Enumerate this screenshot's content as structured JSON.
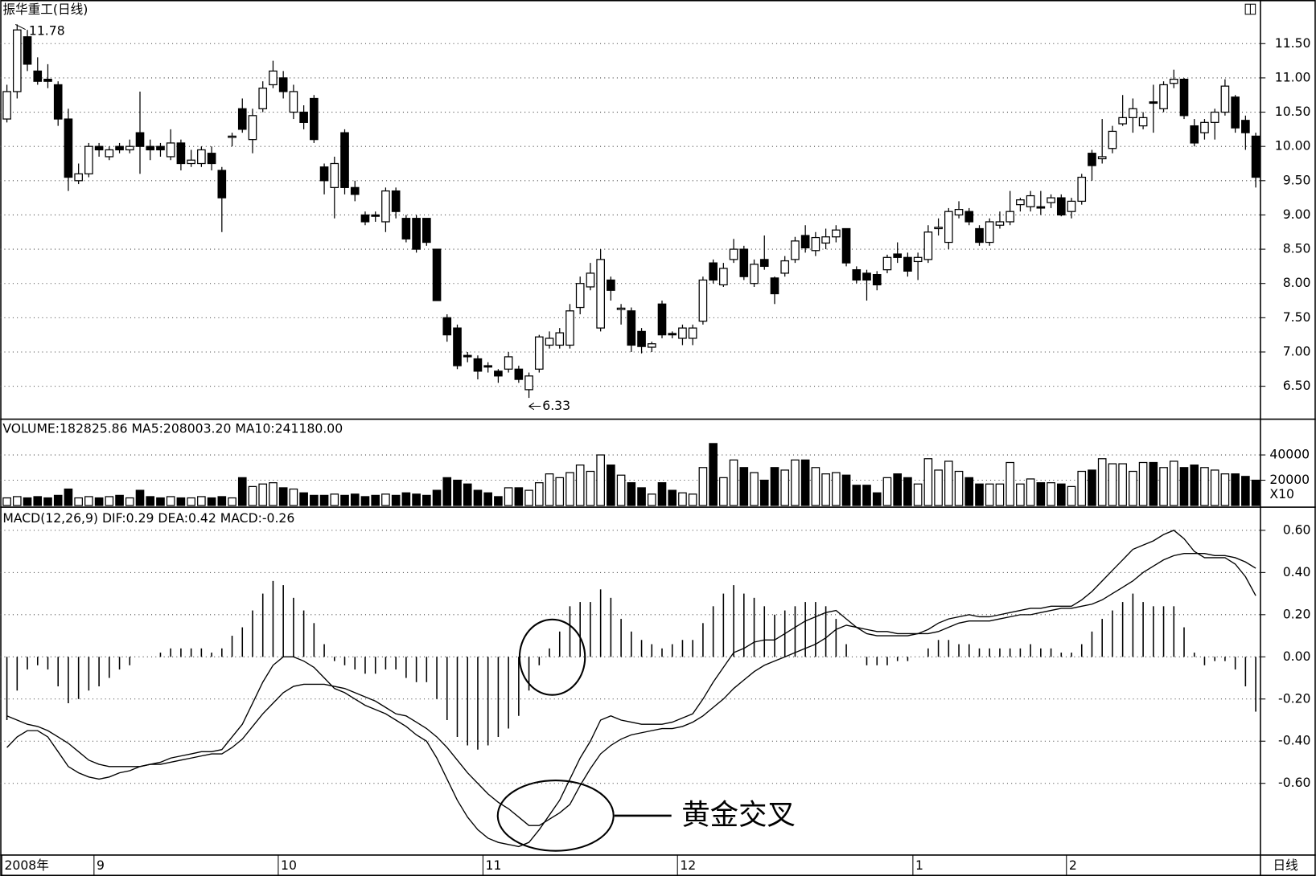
{
  "chart_data": {
    "type": "candlestick",
    "title": "振华重工(日线)",
    "period_label": "日线",
    "high_label": "11.78",
    "low_label": "6.33",
    "annotation": "黄金交叉",
    "categories": [
      "2008年",
      null,
      null,
      null,
      null,
      null,
      null,
      null,
      null,
      "9",
      null,
      null,
      null,
      null,
      null,
      null,
      null,
      null,
      null,
      null,
      null,
      null,
      null,
      null,
      null,
      null,
      null,
      "10",
      null,
      null,
      null,
      null,
      null,
      null,
      null,
      null,
      null,
      null,
      null,
      null,
      null,
      null,
      null,
      null,
      null,
      null,
      null,
      "11",
      null,
      null,
      null,
      null,
      null,
      null,
      null,
      null,
      null,
      null,
      null,
      null,
      null,
      null,
      null,
      null,
      null,
      null,
      "12",
      null,
      null,
      null,
      null,
      null,
      null,
      null,
      null,
      null,
      null,
      null,
      null,
      null,
      null,
      null,
      null,
      null,
      null,
      null,
      null,
      null,
      null,
      "1",
      null,
      null,
      null,
      null,
      null,
      null,
      null,
      null,
      null,
      null,
      null,
      null,
      null,
      null,
      "2",
      null,
      null,
      null,
      null,
      null,
      null,
      null,
      null,
      null,
      null,
      null,
      null,
      null,
      null,
      null,
      null,
      null,
      null
    ],
    "ohlc": [
      [
        10.4,
        10.9,
        10.35,
        10.8
      ],
      [
        10.8,
        11.78,
        10.7,
        11.7
      ],
      [
        11.6,
        11.7,
        11.1,
        11.2
      ],
      [
        11.1,
        11.3,
        10.9,
        10.95
      ],
      [
        10.98,
        11.2,
        10.85,
        10.95
      ],
      [
        10.9,
        10.95,
        10.3,
        10.4
      ],
      [
        10.4,
        10.55,
        9.35,
        9.55
      ],
      [
        9.5,
        9.75,
        9.45,
        9.6
      ],
      [
        9.6,
        10.05,
        9.55,
        10.0
      ],
      [
        10.0,
        10.05,
        9.85,
        9.95
      ],
      [
        9.85,
        10.0,
        9.8,
        9.95
      ],
      [
        10.0,
        10.05,
        9.9,
        9.95
      ],
      [
        9.95,
        10.1,
        9.9,
        10.0
      ],
      [
        10.2,
        10.8,
        9.6,
        10.0
      ],
      [
        10.0,
        10.1,
        9.8,
        9.95
      ],
      [
        10.0,
        10.05,
        9.85,
        9.95
      ],
      [
        9.85,
        10.25,
        9.8,
        10.05
      ],
      [
        10.05,
        10.1,
        9.65,
        9.75
      ],
      [
        9.75,
        9.95,
        9.7,
        9.8
      ],
      [
        9.75,
        10.0,
        9.7,
        9.95
      ],
      [
        9.9,
        10.0,
        9.65,
        9.75
      ],
      [
        9.65,
        9.7,
        8.75,
        9.25
      ],
      [
        10.14,
        10.2,
        10.0,
        10.15
      ],
      [
        10.55,
        10.7,
        10.2,
        10.25
      ],
      [
        10.1,
        10.55,
        9.9,
        10.45
      ],
      [
        10.55,
        10.95,
        10.5,
        10.85
      ],
      [
        10.9,
        11.25,
        10.85,
        11.1
      ],
      [
        11.0,
        11.1,
        10.7,
        10.8
      ],
      [
        10.5,
        10.9,
        10.4,
        10.8
      ],
      [
        10.5,
        10.6,
        10.25,
        10.35
      ],
      [
        10.7,
        10.75,
        10.05,
        10.1
      ],
      [
        9.7,
        9.75,
        9.3,
        9.5
      ],
      [
        9.4,
        9.85,
        8.95,
        9.75
      ],
      [
        10.2,
        10.25,
        9.3,
        9.4
      ],
      [
        9.4,
        9.5,
        9.2,
        9.3
      ],
      [
        9.0,
        9.05,
        8.85,
        8.9
      ],
      [
        9.0,
        9.05,
        8.9,
        8.98
      ],
      [
        8.9,
        9.4,
        8.75,
        9.35
      ],
      [
        9.35,
        9.4,
        8.95,
        9.05
      ],
      [
        8.95,
        9.0,
        8.6,
        8.65
      ],
      [
        8.95,
        9.0,
        8.45,
        8.5
      ],
      [
        8.95,
        8.95,
        8.55,
        8.6
      ],
      [
        8.5,
        8.5,
        7.75,
        7.75
      ],
      [
        7.5,
        7.55,
        7.15,
        7.25
      ],
      [
        7.35,
        7.4,
        6.75,
        6.8
      ],
      [
        6.95,
        7.0,
        6.85,
        6.93
      ],
      [
        6.9,
        6.95,
        6.6,
        6.72
      ],
      [
        6.8,
        6.85,
        6.7,
        6.78
      ],
      [
        6.72,
        6.75,
        6.55,
        6.65
      ],
      [
        6.75,
        7.0,
        6.7,
        6.93
      ],
      [
        6.75,
        6.8,
        6.55,
        6.6
      ],
      [
        6.45,
        6.7,
        6.33,
        6.65
      ],
      [
        6.75,
        7.25,
        6.7,
        7.22
      ],
      [
        7.1,
        7.3,
        7.05,
        7.2
      ],
      [
        7.1,
        7.35,
        7.05,
        7.28
      ],
      [
        7.1,
        7.7,
        7.05,
        7.6
      ],
      [
        7.65,
        8.1,
        7.55,
        8.0
      ],
      [
        7.95,
        8.3,
        7.9,
        8.15
      ],
      [
        7.35,
        8.5,
        7.3,
        8.35
      ],
      [
        8.05,
        8.1,
        7.75,
        7.9
      ],
      [
        7.62,
        7.7,
        7.4,
        7.64
      ],
      [
        7.6,
        7.65,
        7.0,
        7.1
      ],
      [
        7.3,
        7.35,
        6.98,
        7.08
      ],
      [
        7.07,
        7.15,
        7.0,
        7.12
      ],
      [
        7.7,
        7.75,
        7.2,
        7.25
      ],
      [
        7.27,
        7.3,
        7.2,
        7.25
      ],
      [
        7.2,
        7.4,
        7.1,
        7.35
      ],
      [
        7.2,
        7.4,
        7.1,
        7.35
      ],
      [
        7.45,
        8.1,
        7.4,
        8.05
      ],
      [
        8.3,
        8.35,
        8.0,
        8.05
      ],
      [
        7.98,
        8.3,
        7.95,
        8.22
      ],
      [
        8.35,
        8.65,
        8.3,
        8.5
      ],
      [
        8.5,
        8.55,
        8.05,
        8.1
      ],
      [
        8.0,
        8.35,
        7.95,
        8.28
      ],
      [
        8.35,
        8.7,
        8.2,
        8.25
      ],
      [
        8.08,
        8.1,
        7.7,
        7.85
      ],
      [
        8.15,
        8.4,
        8.1,
        8.33
      ],
      [
        8.35,
        8.68,
        8.3,
        8.62
      ],
      [
        8.7,
        8.85,
        8.45,
        8.52
      ],
      [
        8.48,
        8.75,
        8.4,
        8.67
      ],
      [
        8.59,
        8.8,
        8.5,
        8.68
      ],
      [
        8.68,
        8.85,
        8.6,
        8.78
      ],
      [
        8.8,
        8.8,
        8.25,
        8.3
      ],
      [
        8.2,
        8.25,
        8.0,
        8.05
      ],
      [
        8.15,
        8.2,
        7.75,
        8.05
      ],
      [
        8.13,
        8.18,
        7.9,
        7.98
      ],
      [
        8.2,
        8.42,
        8.15,
        8.38
      ],
      [
        8.43,
        8.6,
        8.3,
        8.38
      ],
      [
        8.38,
        8.45,
        8.1,
        8.18
      ],
      [
        8.32,
        8.45,
        8.05,
        8.38
      ],
      [
        8.35,
        8.85,
        8.3,
        8.75
      ],
      [
        8.8,
        8.95,
        8.7,
        8.82
      ],
      [
        8.6,
        9.1,
        8.5,
        9.05
      ],
      [
        9.0,
        9.2,
        8.95,
        9.08
      ],
      [
        9.05,
        9.1,
        8.85,
        8.9
      ],
      [
        8.8,
        8.85,
        8.55,
        8.6
      ],
      [
        8.6,
        8.95,
        8.55,
        8.9
      ],
      [
        8.85,
        9.05,
        8.8,
        8.9
      ],
      [
        8.9,
        9.35,
        8.85,
        9.05
      ],
      [
        9.15,
        9.25,
        9.05,
        9.22
      ],
      [
        9.12,
        9.35,
        9.05,
        9.28
      ],
      [
        9.12,
        9.35,
        9.0,
        9.1
      ],
      [
        9.18,
        9.3,
        9.1,
        9.25
      ],
      [
        9.25,
        9.3,
        8.98,
        9.0
      ],
      [
        9.05,
        9.25,
        8.95,
        9.2
      ],
      [
        9.2,
        9.6,
        9.15,
        9.55
      ],
      [
        9.9,
        9.95,
        9.5,
        9.72
      ],
      [
        9.82,
        10.4,
        9.75,
        9.85
      ],
      [
        9.97,
        10.3,
        9.9,
        10.22
      ],
      [
        10.33,
        10.75,
        10.3,
        10.42
      ],
      [
        10.42,
        10.7,
        10.2,
        10.55
      ],
      [
        10.3,
        10.5,
        10.25,
        10.42
      ],
      [
        10.65,
        10.9,
        10.2,
        10.63
      ],
      [
        10.55,
        10.95,
        10.5,
        10.9
      ],
      [
        10.92,
        11.12,
        10.85,
        10.98
      ],
      [
        10.98,
        11.0,
        10.4,
        10.45
      ],
      [
        10.3,
        10.4,
        10.0,
        10.05
      ],
      [
        10.2,
        10.4,
        10.1,
        10.35
      ],
      [
        10.35,
        10.55,
        10.1,
        10.5
      ],
      [
        10.5,
        10.98,
        10.45,
        10.88
      ],
      [
        10.72,
        10.75,
        10.2,
        10.27
      ],
      [
        10.38,
        10.45,
        9.95,
        10.2
      ],
      [
        10.15,
        10.2,
        9.4,
        9.55
      ]
    ],
    "ylim": [
      6.02,
      12.1
    ],
    "yticks": [
      {
        "value": 6.5,
        "label": "6.50"
      },
      {
        "value": 7,
        "label": "7.00"
      },
      {
        "value": 7.5,
        "label": "7.50"
      },
      {
        "value": 8,
        "label": "8.00"
      },
      {
        "value": 8.5,
        "label": "8.50"
      },
      {
        "value": 9,
        "label": "9.00"
      },
      {
        "value": 9.5,
        "label": "9.50"
      },
      {
        "value": 10,
        "label": "10.00"
      },
      {
        "value": 10.5,
        "label": "10.50"
      },
      {
        "value": 11,
        "label": "11.00"
      },
      {
        "value": 11.5,
        "label": "11.50"
      }
    ],
    "grid": true,
    "volume": {
      "label": "VOLUME:182825.86 MA5:208003.20 MA10:241180.00",
      "scale_label": "X10",
      "values": [
        6000,
        7000,
        6000,
        7000,
        6000,
        8000,
        13000,
        6000,
        7000,
        6000,
        7000,
        8000,
        6000,
        12000,
        7000,
        6000,
        7000,
        6000,
        6000,
        7000,
        6000,
        7000,
        6000,
        22000,
        15000,
        17000,
        18000,
        14000,
        13000,
        10000,
        8000,
        8000,
        9000,
        8000,
        9000,
        7000,
        8000,
        9000,
        8000,
        10000,
        9000,
        8000,
        12000,
        22000,
        20000,
        17000,
        12000,
        10000,
        7000,
        14000,
        14000,
        12000,
        18000,
        25000,
        22000,
        26000,
        32000,
        27000,
        40000,
        32000,
        24000,
        18000,
        14000,
        9000,
        18000,
        12000,
        10000,
        9000,
        30000,
        49000,
        22000,
        36000,
        30000,
        26000,
        20000,
        30000,
        28000,
        36000,
        36000,
        30000,
        25000,
        26000,
        24000,
        16000,
        16000,
        10000,
        22000,
        25000,
        22000,
        17000,
        37000,
        28000,
        35000,
        27000,
        22000,
        17000,
        17000,
        17000,
        34000,
        17000,
        21000,
        18000,
        18000,
        17000,
        15000,
        27000,
        28000,
        37000,
        33000,
        33000,
        27000,
        34000,
        34000,
        30000,
        35000,
        30000,
        32000,
        30000,
        28000,
        25000,
        25000,
        23000,
        20000
      ],
      "ylim": [
        0,
        65000
      ],
      "yticks": [
        20000,
        40000
      ]
    },
    "macd": {
      "label": "MACD(12,26,9) DIF:0.29 DEA:0.42 MACD:-0.26",
      "dif": [
        -0.43,
        -0.38,
        -0.35,
        -0.35,
        -0.38,
        -0.45,
        -0.52,
        -0.55,
        -0.57,
        -0.58,
        -0.57,
        -0.55,
        -0.54,
        -0.52,
        -0.51,
        -0.5,
        -0.48,
        -0.47,
        -0.46,
        -0.45,
        -0.45,
        -0.44,
        -0.38,
        -0.32,
        -0.22,
        -0.12,
        -0.04,
        0.0,
        0.0,
        -0.02,
        -0.05,
        -0.1,
        -0.15,
        -0.17,
        -0.2,
        -0.23,
        -0.25,
        -0.27,
        -0.3,
        -0.33,
        -0.37,
        -0.4,
        -0.48,
        -0.58,
        -0.68,
        -0.76,
        -0.82,
        -0.86,
        -0.88,
        -0.89,
        -0.9,
        -0.88,
        -0.82,
        -0.75,
        -0.68,
        -0.58,
        -0.48,
        -0.4,
        -0.3,
        -0.28,
        -0.3,
        -0.31,
        -0.32,
        -0.32,
        -0.32,
        -0.31,
        -0.29,
        -0.27,
        -0.2,
        -0.12,
        -0.05,
        0.02,
        0.04,
        0.07,
        0.08,
        0.08,
        0.11,
        0.14,
        0.17,
        0.19,
        0.21,
        0.22,
        0.18,
        0.14,
        0.11,
        0.1,
        0.1,
        0.1,
        0.1,
        0.11,
        0.13,
        0.16,
        0.18,
        0.19,
        0.2,
        0.19,
        0.19,
        0.2,
        0.21,
        0.22,
        0.23,
        0.23,
        0.24,
        0.24,
        0.24,
        0.27,
        0.31,
        0.36,
        0.41,
        0.46,
        0.51,
        0.53,
        0.55,
        0.58,
        0.6,
        0.56,
        0.5,
        0.47,
        0.47,
        0.47,
        0.44,
        0.38,
        0.29
      ],
      "dea": [
        -0.28,
        -0.3,
        -0.32,
        -0.33,
        -0.35,
        -0.38,
        -0.41,
        -0.45,
        -0.49,
        -0.51,
        -0.52,
        -0.52,
        -0.52,
        -0.52,
        -0.51,
        -0.51,
        -0.5,
        -0.49,
        -0.48,
        -0.47,
        -0.46,
        -0.46,
        -0.43,
        -0.39,
        -0.33,
        -0.27,
        -0.22,
        -0.17,
        -0.14,
        -0.13,
        -0.13,
        -0.13,
        -0.14,
        -0.15,
        -0.17,
        -0.19,
        -0.21,
        -0.24,
        -0.27,
        -0.28,
        -0.31,
        -0.34,
        -0.38,
        -0.43,
        -0.49,
        -0.55,
        -0.6,
        -0.65,
        -0.69,
        -0.72,
        -0.76,
        -0.8,
        -0.8,
        -0.77,
        -0.74,
        -0.7,
        -0.61,
        -0.53,
        -0.46,
        -0.42,
        -0.39,
        -0.37,
        -0.36,
        -0.35,
        -0.34,
        -0.34,
        -0.33,
        -0.31,
        -0.28,
        -0.24,
        -0.2,
        -0.15,
        -0.11,
        -0.07,
        -0.04,
        -0.02,
        0.0,
        0.02,
        0.04,
        0.06,
        0.09,
        0.13,
        0.15,
        0.14,
        0.13,
        0.12,
        0.12,
        0.11,
        0.11,
        0.11,
        0.11,
        0.12,
        0.14,
        0.16,
        0.17,
        0.17,
        0.17,
        0.18,
        0.19,
        0.2,
        0.2,
        0.21,
        0.22,
        0.23,
        0.23,
        0.24,
        0.25,
        0.27,
        0.3,
        0.33,
        0.36,
        0.4,
        0.43,
        0.46,
        0.48,
        0.49,
        0.49,
        0.49,
        0.48,
        0.48,
        0.47,
        0.45,
        0.42
      ],
      "hist": [
        -0.3,
        -0.16,
        -0.06,
        -0.04,
        -0.06,
        -0.14,
        -0.22,
        -0.2,
        -0.16,
        -0.14,
        -0.1,
        -0.06,
        -0.04,
        0.0,
        0.0,
        0.02,
        0.04,
        0.04,
        0.04,
        0.04,
        0.02,
        0.04,
        0.1,
        0.14,
        0.22,
        0.3,
        0.36,
        0.34,
        0.28,
        0.22,
        0.16,
        0.06,
        -0.02,
        -0.04,
        -0.06,
        -0.08,
        -0.08,
        -0.06,
        -0.06,
        -0.1,
        -0.12,
        -0.12,
        -0.2,
        -0.3,
        -0.38,
        -0.42,
        -0.44,
        -0.42,
        -0.38,
        -0.34,
        -0.28,
        -0.16,
        -0.04,
        0.04,
        0.12,
        0.24,
        0.26,
        0.26,
        0.32,
        0.28,
        0.18,
        0.12,
        0.08,
        0.06,
        0.04,
        0.06,
        0.08,
        0.08,
        0.16,
        0.24,
        0.3,
        0.34,
        0.3,
        0.28,
        0.24,
        0.2,
        0.22,
        0.24,
        0.26,
        0.26,
        0.24,
        0.18,
        0.06,
        0.0,
        -0.04,
        -0.04,
        -0.04,
        -0.02,
        -0.02,
        0.0,
        0.04,
        0.08,
        0.08,
        0.06,
        0.06,
        0.04,
        0.04,
        0.04,
        0.04,
        0.04,
        0.06,
        0.04,
        0.04,
        0.02,
        0.02,
        0.06,
        0.12,
        0.18,
        0.22,
        0.26,
        0.3,
        0.26,
        0.24,
        0.24,
        0.24,
        0.14,
        0.02,
        -0.04,
        -0.02,
        -0.02,
        -0.06,
        -0.14,
        -0.26
      ],
      "ylim": [
        -0.94,
        0.69
      ],
      "yticks": [
        {
          "value": -0.6,
          "label": "-0.60"
        },
        {
          "value": -0.4,
          "label": "-0.40"
        },
        {
          "value": -0.2,
          "label": "-0.20"
        },
        {
          "value": 0,
          "label": "0.00"
        },
        {
          "value": 0.2,
          "label": "0.20"
        },
        {
          "value": 0.4,
          "label": "0.40"
        },
        {
          "value": 0.6,
          "label": "0.60"
        }
      ]
    }
  }
}
